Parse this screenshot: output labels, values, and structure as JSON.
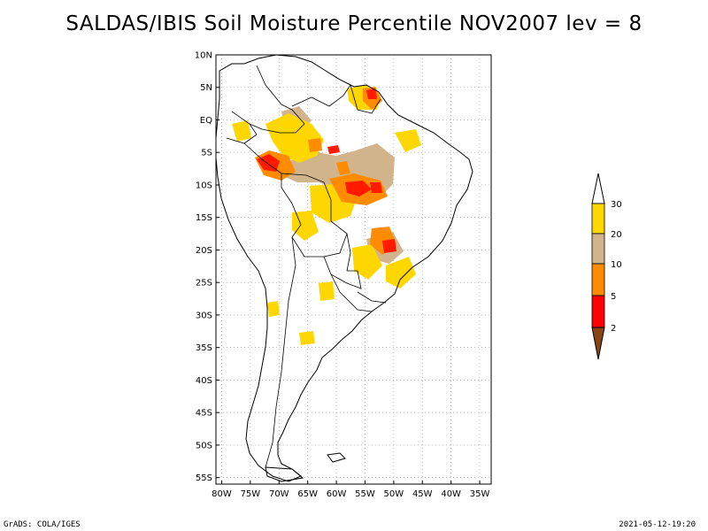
{
  "title": "SALDAS/IBIS Soil Moisture Percentile NOV2007 lev = 8",
  "map": {
    "lat_labels": [
      "10N",
      "5N",
      "EQ",
      "5S",
      "10S",
      "15S",
      "20S",
      "25S",
      "30S",
      "35S",
      "40S",
      "45S",
      "50S",
      "55S"
    ],
    "lon_labels": [
      "80W",
      "75W",
      "70W",
      "65W",
      "60W",
      "55W",
      "50W",
      "45W",
      "40W",
      "35W"
    ],
    "lat_range": [
      10,
      -56
    ],
    "lon_range": [
      -81,
      -33
    ]
  },
  "legend": {
    "levels": [
      "2",
      "5",
      "10",
      "20",
      "30"
    ],
    "colors": [
      "#8b4513",
      "#ff0000",
      "#ff8c00",
      "#d2b48c",
      "#ffd700",
      "#ffffff"
    ]
  },
  "colors": {
    "coast": "#000000",
    "grid": "#9a9a9a",
    "red": "#ff1a00",
    "orange": "#ff8c00",
    "tan": "#d2b48c",
    "yellow": "#ffd700"
  },
  "footer": {
    "left": "GrADS: COLA/IGES",
    "right": "2021-05-12-19:20"
  }
}
